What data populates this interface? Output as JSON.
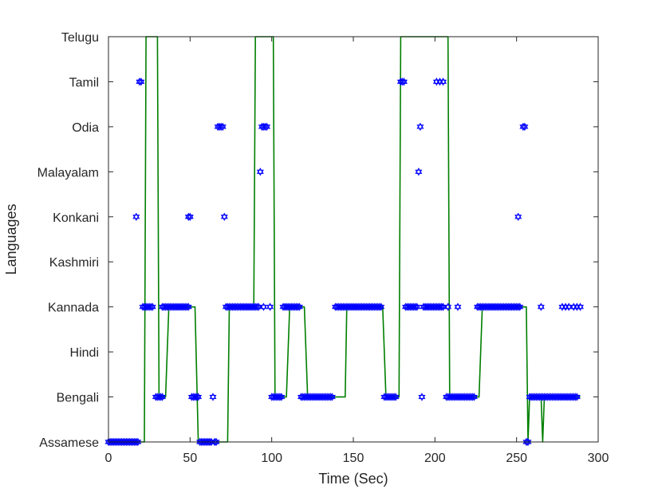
{
  "chart_data": {
    "type": "scatter+line",
    "xlabel": "Time (Sec)",
    "ylabel": "Languages",
    "xlim": [
      0,
      300
    ],
    "xticks": [
      0,
      50,
      100,
      150,
      200,
      250,
      300
    ],
    "categories": [
      "Assamese",
      "Bengali",
      "Hindi",
      "Kannada",
      "Kashmiri",
      "Konkani",
      "Malayalam",
      "Odia",
      "Tamil",
      "Telugu"
    ],
    "grid": false,
    "colors": {
      "markers": "#0000ff",
      "line": "#007f00",
      "axes": "#262626"
    },
    "series": [
      {
        "marker": "hexagram",
        "points": [
          [
            0,
            0
          ],
          [
            1,
            0
          ],
          [
            2,
            0
          ],
          [
            3,
            0
          ],
          [
            4,
            0
          ],
          [
            5,
            0
          ],
          [
            6,
            0
          ],
          [
            7,
            0
          ],
          [
            8,
            0
          ],
          [
            9,
            0
          ],
          [
            10,
            0
          ],
          [
            11,
            0
          ],
          [
            12,
            0
          ],
          [
            13,
            0
          ],
          [
            14,
            0
          ],
          [
            15,
            0
          ],
          [
            16,
            0
          ],
          [
            17,
            0
          ],
          [
            18,
            0
          ],
          [
            17,
            5
          ],
          [
            19,
            8
          ],
          [
            20,
            8
          ],
          [
            21,
            3
          ],
          [
            22,
            3
          ],
          [
            23,
            3
          ],
          [
            24,
            3
          ],
          [
            25,
            3
          ],
          [
            26,
            3
          ],
          [
            27,
            3
          ],
          [
            29,
            1
          ],
          [
            30,
            1
          ],
          [
            31,
            1
          ],
          [
            32,
            1
          ],
          [
            33,
            1
          ],
          [
            33,
            3
          ],
          [
            34,
            3
          ],
          [
            35,
            3
          ],
          [
            36,
            3
          ],
          [
            37,
            3
          ],
          [
            38,
            3
          ],
          [
            39,
            3
          ],
          [
            40,
            3
          ],
          [
            41,
            3
          ],
          [
            42,
            3
          ],
          [
            43,
            3
          ],
          [
            44,
            3
          ],
          [
            45,
            3
          ],
          [
            46,
            3
          ],
          [
            47,
            3
          ],
          [
            48,
            3
          ],
          [
            49,
            3
          ],
          [
            49,
            5
          ],
          [
            50,
            5
          ],
          [
            51,
            1
          ],
          [
            52,
            1
          ],
          [
            53,
            1
          ],
          [
            54,
            1
          ],
          [
            55,
            1
          ],
          [
            56,
            0
          ],
          [
            57,
            0
          ],
          [
            58,
            0
          ],
          [
            59,
            0
          ],
          [
            60,
            0
          ],
          [
            61,
            0
          ],
          [
            62,
            0
          ],
          [
            63,
            0
          ],
          [
            65,
            0
          ],
          [
            66,
            0
          ],
          [
            64,
            1
          ],
          [
            67,
            7
          ],
          [
            68,
            7
          ],
          [
            69,
            7
          ],
          [
            70,
            7
          ],
          [
            71,
            5
          ],
          [
            72,
            3
          ],
          [
            73,
            3
          ],
          [
            74,
            3
          ],
          [
            75,
            3
          ],
          [
            76,
            3
          ],
          [
            77,
            3
          ],
          [
            78,
            3
          ],
          [
            79,
            3
          ],
          [
            80,
            3
          ],
          [
            81,
            3
          ],
          [
            82,
            3
          ],
          [
            83,
            3
          ],
          [
            84,
            3
          ],
          [
            85,
            3
          ],
          [
            86,
            3
          ],
          [
            87,
            3
          ],
          [
            88,
            3
          ],
          [
            89,
            3
          ],
          [
            90,
            3
          ],
          [
            91,
            3
          ],
          [
            92,
            3
          ],
          [
            93,
            6
          ],
          [
            94,
            7
          ],
          [
            95,
            7
          ],
          [
            96,
            7
          ],
          [
            97,
            7
          ],
          [
            95,
            3
          ],
          [
            99,
            3
          ],
          [
            100,
            1
          ],
          [
            101,
            1
          ],
          [
            102,
            1
          ],
          [
            103,
            1
          ],
          [
            104,
            1
          ],
          [
            105,
            1
          ],
          [
            106,
            1
          ],
          [
            107,
            3
          ],
          [
            108,
            3
          ],
          [
            109,
            3
          ],
          [
            110,
            3
          ],
          [
            111,
            3
          ],
          [
            112,
            3
          ],
          [
            113,
            3
          ],
          [
            114,
            3
          ],
          [
            115,
            3
          ],
          [
            116,
            3
          ],
          [
            117,
            3
          ],
          [
            118,
            1
          ],
          [
            119,
            1
          ],
          [
            120,
            1
          ],
          [
            121,
            1
          ],
          [
            122,
            1
          ],
          [
            123,
            1
          ],
          [
            124,
            1
          ],
          [
            125,
            1
          ],
          [
            126,
            1
          ],
          [
            127,
            1
          ],
          [
            128,
            1
          ],
          [
            129,
            1
          ],
          [
            130,
            1
          ],
          [
            131,
            1
          ],
          [
            132,
            1
          ],
          [
            133,
            1
          ],
          [
            134,
            1
          ],
          [
            135,
            1
          ],
          [
            136,
            1
          ],
          [
            137,
            1
          ],
          [
            139,
            3
          ],
          [
            140,
            3
          ],
          [
            141,
            3
          ],
          [
            142,
            3
          ],
          [
            143,
            3
          ],
          [
            144,
            3
          ],
          [
            145,
            3
          ],
          [
            146,
            3
          ],
          [
            147,
            3
          ],
          [
            148,
            3
          ],
          [
            149,
            3
          ],
          [
            150,
            3
          ],
          [
            151,
            3
          ],
          [
            152,
            3
          ],
          [
            153,
            3
          ],
          [
            154,
            3
          ],
          [
            155,
            3
          ],
          [
            156,
            3
          ],
          [
            157,
            3
          ],
          [
            158,
            3
          ],
          [
            159,
            3
          ],
          [
            160,
            3
          ],
          [
            161,
            3
          ],
          [
            162,
            3
          ],
          [
            163,
            3
          ],
          [
            164,
            3
          ],
          [
            165,
            3
          ],
          [
            166,
            3
          ],
          [
            167,
            3
          ],
          [
            169,
            1
          ],
          [
            170,
            1
          ],
          [
            171,
            1
          ],
          [
            172,
            1
          ],
          [
            173,
            1
          ],
          [
            174,
            1
          ],
          [
            175,
            1
          ],
          [
            176,
            1
          ],
          [
            179,
            8
          ],
          [
            180,
            8
          ],
          [
            181,
            8
          ],
          [
            182,
            3
          ],
          [
            183,
            3
          ],
          [
            184,
            3
          ],
          [
            185,
            3
          ],
          [
            186,
            3
          ],
          [
            187,
            3
          ],
          [
            188,
            3
          ],
          [
            189,
            3
          ],
          [
            190,
            6
          ],
          [
            191,
            7
          ],
          [
            192,
            1
          ],
          [
            193,
            3
          ],
          [
            194,
            3
          ],
          [
            195,
            3
          ],
          [
            196,
            3
          ],
          [
            197,
            3
          ],
          [
            198,
            3
          ],
          [
            199,
            3
          ],
          [
            200,
            3
          ],
          [
            201,
            3
          ],
          [
            202,
            3
          ],
          [
            203,
            3
          ],
          [
            204,
            3
          ],
          [
            205,
            3
          ],
          [
            201,
            8
          ],
          [
            203,
            8
          ],
          [
            205,
            8
          ],
          [
            207,
            1
          ],
          [
            208,
            1
          ],
          [
            209,
            1
          ],
          [
            210,
            1
          ],
          [
            211,
            1
          ],
          [
            212,
            1
          ],
          [
            213,
            1
          ],
          [
            214,
            1
          ],
          [
            215,
            1
          ],
          [
            216,
            1
          ],
          [
            217,
            1
          ],
          [
            218,
            1
          ],
          [
            219,
            1
          ],
          [
            220,
            1
          ],
          [
            221,
            1
          ],
          [
            222,
            1
          ],
          [
            223,
            1
          ],
          [
            224,
            1
          ],
          [
            208,
            3
          ],
          [
            214,
            3
          ],
          [
            226,
            3
          ],
          [
            227,
            3
          ],
          [
            228,
            3
          ],
          [
            229,
            3
          ],
          [
            230,
            3
          ],
          [
            231,
            3
          ],
          [
            232,
            3
          ],
          [
            233,
            3
          ],
          [
            234,
            3
          ],
          [
            235,
            3
          ],
          [
            236,
            3
          ],
          [
            237,
            3
          ],
          [
            238,
            3
          ],
          [
            239,
            3
          ],
          [
            240,
            3
          ],
          [
            241,
            3
          ],
          [
            242,
            3
          ],
          [
            243,
            3
          ],
          [
            244,
            3
          ],
          [
            245,
            3
          ],
          [
            246,
            3
          ],
          [
            247,
            3
          ],
          [
            248,
            3
          ],
          [
            249,
            3
          ],
          [
            250,
            3
          ],
          [
            251,
            3
          ],
          [
            252,
            3
          ],
          [
            251,
            5
          ],
          [
            254,
            7
          ],
          [
            255,
            7
          ],
          [
            256,
            0
          ],
          [
            257,
            0
          ],
          [
            258,
            1
          ],
          [
            259,
            1
          ],
          [
            260,
            1
          ],
          [
            261,
            1
          ],
          [
            262,
            1
          ],
          [
            263,
            1
          ],
          [
            264,
            1
          ],
          [
            265,
            1
          ],
          [
            266,
            1
          ],
          [
            267,
            1
          ],
          [
            268,
            1
          ],
          [
            269,
            1
          ],
          [
            270,
            1
          ],
          [
            271,
            1
          ],
          [
            272,
            1
          ],
          [
            273,
            1
          ],
          [
            274,
            1
          ],
          [
            275,
            1
          ],
          [
            276,
            1
          ],
          [
            277,
            1
          ],
          [
            278,
            1
          ],
          [
            279,
            1
          ],
          [
            280,
            1
          ],
          [
            281,
            1
          ],
          [
            282,
            1
          ],
          [
            283,
            1
          ],
          [
            284,
            1
          ],
          [
            285,
            1
          ],
          [
            286,
            1
          ],
          [
            287,
            1
          ],
          [
            265,
            3
          ],
          [
            278,
            3
          ],
          [
            280,
            3
          ],
          [
            282,
            3
          ],
          [
            285,
            3
          ],
          [
            287,
            3
          ],
          [
            289,
            3
          ]
        ]
      },
      {
        "style": "line",
        "points": [
          [
            0,
            0
          ],
          [
            22,
            0
          ],
          [
            23,
            9
          ],
          [
            30,
            9
          ],
          [
            31,
            1
          ],
          [
            35,
            1
          ],
          [
            37,
            3
          ],
          [
            53,
            3
          ],
          [
            55,
            0
          ],
          [
            73,
            0
          ],
          [
            74,
            3
          ],
          [
            89,
            3
          ],
          [
            90,
            9
          ],
          [
            101,
            9
          ],
          [
            102,
            1
          ],
          [
            109,
            1
          ],
          [
            111,
            3
          ],
          [
            120,
            3
          ],
          [
            122,
            1
          ],
          [
            145,
            1
          ],
          [
            146,
            3
          ],
          [
            168,
            3
          ],
          [
            170,
            1
          ],
          [
            178,
            1
          ],
          [
            179,
            9
          ],
          [
            208,
            9
          ],
          [
            209,
            1
          ],
          [
            227,
            1
          ],
          [
            229,
            3
          ],
          [
            256,
            3
          ],
          [
            257,
            0
          ],
          [
            258,
            1
          ],
          [
            265,
            1
          ],
          [
            266,
            0
          ],
          [
            267,
            1
          ],
          [
            289,
            1
          ]
        ]
      }
    ]
  }
}
